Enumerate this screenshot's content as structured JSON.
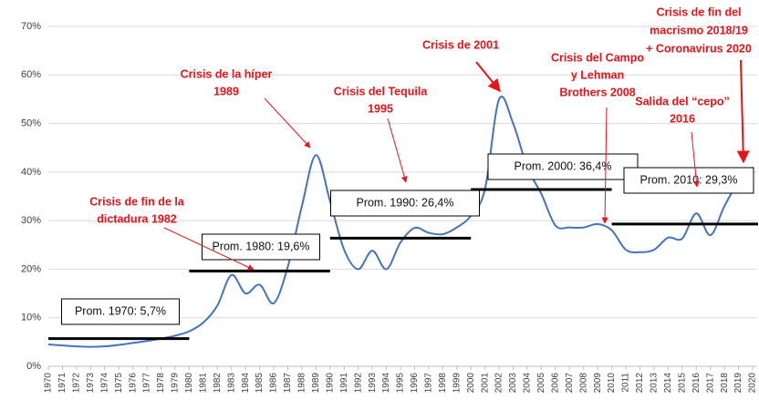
{
  "chart_data": {
    "type": "line",
    "x": [
      1970,
      1971,
      1972,
      1973,
      1974,
      1975,
      1976,
      1977,
      1978,
      1979,
      1980,
      1981,
      1982,
      1983,
      1984,
      1985,
      1986,
      1987,
      1988,
      1989,
      1990,
      1991,
      1992,
      1993,
      1994,
      1995,
      1996,
      1997,
      1998,
      1999,
      2000,
      2001,
      2002,
      2003,
      2004,
      2005,
      2006,
      2007,
      2008,
      2009,
      2010,
      2011,
      2012,
      2013,
      2014,
      2015,
      2016,
      2017,
      2018,
      2019,
      2020
    ],
    "series": [
      {
        "color": "#4472c4",
        "values": [
          4.5,
          4.3,
          4.1,
          4.0,
          4.1,
          4.4,
          4.8,
          5.2,
          5.7,
          6.3,
          7.2,
          9.0,
          12.5,
          18.8,
          15.0,
          16.8,
          13.0,
          20.5,
          33.0,
          43.5,
          34.0,
          24.0,
          20.0,
          23.8,
          20.0,
          25.5,
          28.5,
          27.5,
          27.2,
          28.6,
          31.0,
          36.5,
          55.0,
          50.0,
          41.0,
          35.5,
          29.0,
          28.6,
          28.6,
          29.3,
          28.0,
          24.0,
          23.5,
          24.0,
          26.5,
          26.3,
          31.5,
          27.0,
          33.0,
          38.0,
          41.0
        ]
      }
    ],
    "ylim": [
      0,
      70
    ],
    "yticks": [
      {
        "value": 0,
        "label": "0%"
      },
      {
        "value": 10,
        "label": "10%"
      },
      {
        "value": 20,
        "label": "20%"
      },
      {
        "value": 30,
        "label": "30%"
      },
      {
        "value": 40,
        "label": "40%"
      },
      {
        "value": 50,
        "label": "50%"
      },
      {
        "value": 60,
        "label": "60%"
      },
      {
        "value": 70,
        "label": "70%"
      }
    ],
    "xlim": [
      1970,
      2020
    ],
    "xticks": [
      1970,
      1971,
      1972,
      1973,
      1974,
      1975,
      1976,
      1977,
      1978,
      1979,
      1980,
      1981,
      1982,
      1983,
      1984,
      1985,
      1986,
      1987,
      1988,
      1989,
      1990,
      1991,
      1992,
      1993,
      1994,
      1995,
      1996,
      1997,
      1998,
      1999,
      2000,
      2001,
      2002,
      2003,
      2004,
      2005,
      2006,
      2007,
      2008,
      2009,
      2010,
      2011,
      2012,
      2013,
      2014,
      2015,
      2016,
      2017,
      2018,
      2019,
      2020
    ],
    "grid": true,
    "averages": {
      "color": "#000000",
      "start": [
        1970,
        1980,
        1990,
        2000,
        2010
      ],
      "end": [
        1980,
        1990,
        2000,
        2010,
        2020
      ],
      "values": [
        5.7,
        19.6,
        26.4,
        36.4,
        29.3
      ],
      "value_labels": [
        "Prom. 1970: 5,7%",
        "Prom. 1980: 19,6%",
        "Prom. 1990: 26,4%",
        "Prom. 2000: 36,4%",
        "Prom. 2010: 29,3%"
      ]
    },
    "annotations": [
      {
        "lines": [
          "Crisis de fin de la",
          "dictadura 1982"
        ]
      },
      {
        "lines": [
          "Crisis de la híper",
          "1989"
        ]
      },
      {
        "lines": [
          "Crisis del Tequila",
          "1995"
        ]
      },
      {
        "lines": [
          "Crisis de 2001"
        ]
      },
      {
        "lines": [
          "Crisis del Campo",
          "y Lehman",
          "Brothers 2008"
        ]
      },
      {
        "lines": [
          "Salida del “cepo”",
          "2016"
        ]
      },
      {
        "lines": [
          "Crisis de fin del",
          "macrismo 2018/19",
          "+ Coronavirus 2020"
        ]
      }
    ]
  }
}
